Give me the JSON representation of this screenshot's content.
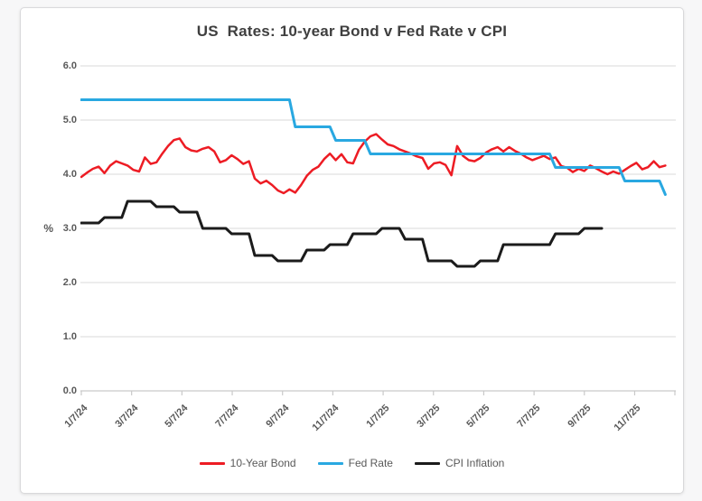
{
  "title": "US  Rates: 10-year Bond v Fed Rate v CPI",
  "y_axis": {
    "unit_label": "%",
    "tick_labels": [
      "6.0",
      "5.0",
      "4.0",
      "3.0",
      "2.0",
      "1.0",
      "0.0"
    ],
    "min": 0,
    "max": 6
  },
  "x_axis": {
    "tick_labels": [
      "1/7/24",
      "3/7/24",
      "5/7/24",
      "7/7/24",
      "9/7/24",
      "11/7/24",
      "1/7/25",
      "3/7/25",
      "5/7/25",
      "7/7/25",
      "9/7/25",
      "11/7/25"
    ]
  },
  "legend": [
    {
      "label": "10-Year Bond",
      "color": "#ed1c24"
    },
    {
      "label": "Fed Rate",
      "color": "#29a8e1"
    },
    {
      "label": "CPI Inflation",
      "color": "#1b1b1b"
    }
  ],
  "colors": {
    "grid": "#d9d9d9",
    "axis": "#c9c9c9",
    "label": "#595959",
    "title": "#3f3f3f"
  },
  "chart_data": {
    "type": "line",
    "title": "US  Rates: 10-year Bond v Fed Rate v CPI",
    "ylabel": "%",
    "ylim": [
      0,
      6
    ],
    "grid": "horizontal",
    "legend_position": "bottom",
    "x_unit": "weekly from 1/7/24",
    "n_points": 102,
    "x_tick_labels": [
      "1/7/24",
      "3/7/24",
      "5/7/24",
      "7/7/24",
      "9/7/24",
      "11/7/24",
      "1/7/25",
      "3/7/25",
      "5/7/25",
      "7/7/25",
      "9/7/25",
      "11/7/25"
    ],
    "x_tick_indices": [
      0,
      8.7,
      17.4,
      26.1,
      34.8,
      43.5,
      52.2,
      60.9,
      69.6,
      78.3,
      87,
      95.7
    ],
    "series": [
      {
        "name": "10-Year Bond",
        "color": "#ed1c24",
        "width": 2.5,
        "values": [
          3.95,
          4.03,
          4.1,
          4.14,
          4.02,
          4.16,
          4.24,
          4.2,
          4.16,
          4.08,
          4.05,
          4.31,
          4.19,
          4.22,
          4.38,
          4.52,
          4.63,
          4.66,
          4.5,
          4.44,
          4.42,
          4.47,
          4.5,
          4.42,
          4.22,
          4.26,
          4.35,
          4.28,
          4.19,
          4.24,
          3.92,
          3.83,
          3.88,
          3.8,
          3.7,
          3.65,
          3.72,
          3.66,
          3.8,
          3.97,
          4.08,
          4.14,
          4.28,
          4.38,
          4.26,
          4.37,
          4.22,
          4.2,
          4.45,
          4.6,
          4.7,
          4.74,
          4.64,
          4.55,
          4.52,
          4.46,
          4.42,
          4.38,
          4.33,
          4.3,
          4.1,
          4.2,
          4.22,
          4.17,
          3.98,
          4.52,
          4.34,
          4.26,
          4.24,
          4.3,
          4.4,
          4.46,
          4.5,
          4.42,
          4.5,
          4.43,
          4.38,
          4.31,
          4.26,
          4.3,
          4.34,
          4.28,
          4.31,
          4.15,
          4.12,
          4.04,
          4.1,
          4.06,
          4.16,
          4.11,
          4.05,
          4.0,
          4.05,
          4.01,
          4.08,
          4.15,
          4.21,
          4.09,
          4.13,
          4.24,
          4.13,
          4.16
        ]
      },
      {
        "name": "Fed Rate",
        "color": "#29a8e1",
        "width": 3,
        "values": [
          5.375,
          5.375,
          5.375,
          5.375,
          5.375,
          5.375,
          5.375,
          5.375,
          5.375,
          5.375,
          5.375,
          5.375,
          5.375,
          5.375,
          5.375,
          5.375,
          5.375,
          5.375,
          5.375,
          5.375,
          5.375,
          5.375,
          5.375,
          5.375,
          5.375,
          5.375,
          5.375,
          5.375,
          5.375,
          5.375,
          5.375,
          5.375,
          5.375,
          5.375,
          5.375,
          5.375,
          5.375,
          4.875,
          4.875,
          4.875,
          4.875,
          4.875,
          4.875,
          4.875,
          4.625,
          4.625,
          4.625,
          4.625,
          4.625,
          4.625,
          4.375,
          4.375,
          4.375,
          4.375,
          4.375,
          4.375,
          4.375,
          4.375,
          4.375,
          4.375,
          4.375,
          4.375,
          4.375,
          4.375,
          4.375,
          4.375,
          4.375,
          4.375,
          4.375,
          4.375,
          4.375,
          4.375,
          4.375,
          4.375,
          4.375,
          4.375,
          4.375,
          4.375,
          4.375,
          4.375,
          4.375,
          4.375,
          4.125,
          4.125,
          4.125,
          4.125,
          4.125,
          4.125,
          4.125,
          4.125,
          4.125,
          4.125,
          4.125,
          4.125,
          3.875,
          3.875,
          3.875,
          3.875,
          3.875,
          3.875,
          3.875,
          3.625
        ]
      },
      {
        "name": "CPI Inflation",
        "color": "#1b1b1b",
        "width": 3,
        "values": [
          3.1,
          3.1,
          3.1,
          3.1,
          3.2,
          3.2,
          3.2,
          3.2,
          3.5,
          3.5,
          3.5,
          3.5,
          3.5,
          3.4,
          3.4,
          3.4,
          3.4,
          3.3,
          3.3,
          3.3,
          3.3,
          3.0,
          3.0,
          3.0,
          3.0,
          3.0,
          2.9,
          2.9,
          2.9,
          2.9,
          2.5,
          2.5,
          2.5,
          2.5,
          2.4,
          2.4,
          2.4,
          2.4,
          2.4,
          2.6,
          2.6,
          2.6,
          2.6,
          2.7,
          2.7,
          2.7,
          2.7,
          2.9,
          2.9,
          2.9,
          2.9,
          2.9,
          3.0,
          3.0,
          3.0,
          3.0,
          2.8,
          2.8,
          2.8,
          2.8,
          2.4,
          2.4,
          2.4,
          2.4,
          2.4,
          2.3,
          2.3,
          2.3,
          2.3,
          2.4,
          2.4,
          2.4,
          2.4,
          2.7,
          2.7,
          2.7,
          2.7,
          2.7,
          2.7,
          2.7,
          2.7,
          2.7,
          2.9,
          2.9,
          2.9,
          2.9,
          2.9,
          3.0,
          3.0,
          3.0,
          3.0,
          null,
          null,
          null,
          null,
          null,
          null,
          null,
          null,
          null,
          null,
          null
        ]
      }
    ]
  }
}
